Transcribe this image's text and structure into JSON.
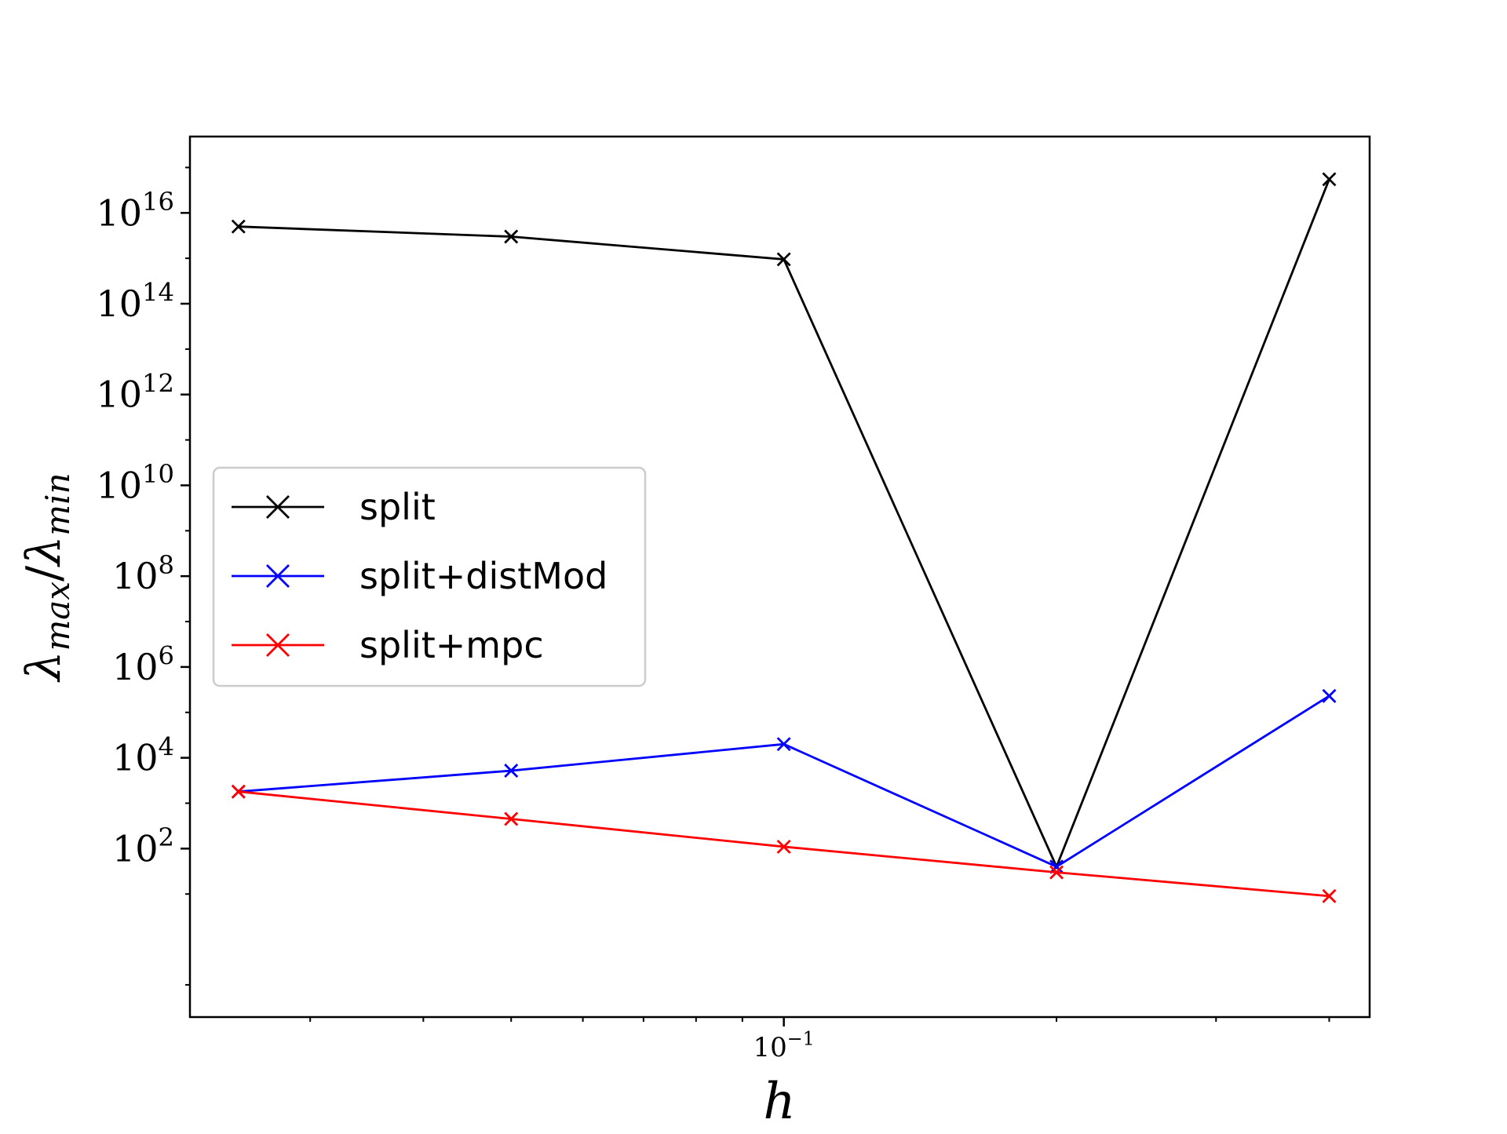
{
  "chart_data": {
    "type": "line",
    "title": "",
    "xlabel": "h",
    "ylabel": "λmax/λmin",
    "x_scale": "log",
    "y_scale": "log",
    "x": [
      0.025,
      0.05,
      0.1,
      0.2,
      0.4
    ],
    "xlim": [
      0.0221,
      0.4433
    ],
    "ylim": [
      0.0195,
      4.8e+17
    ],
    "x_ticks": [
      {
        "value": 0.1,
        "base": "10",
        "exp": "−1"
      }
    ],
    "y_ticks": [
      {
        "value": 100,
        "base": "10",
        "exp": "2"
      },
      {
        "value": 10000,
        "base": "10",
        "exp": "4"
      },
      {
        "value": 1000000,
        "base": "10",
        "exp": "6"
      },
      {
        "value": 100000000,
        "base": "10",
        "exp": "8"
      },
      {
        "value": 10000000000,
        "base": "10",
        "exp": "10"
      },
      {
        "value": 1000000000000,
        "base": "10",
        "exp": "12"
      },
      {
        "value": 100000000000000,
        "base": "10",
        "exp": "14"
      },
      {
        "value": 10000000000000000,
        "base": "10",
        "exp": "16"
      }
    ],
    "grid": false,
    "legend_position": "center-left",
    "series": [
      {
        "name": "split",
        "color": "#000000",
        "marker": "x",
        "values": [
          5000000000000000.0,
          3000000000000000.0,
          950000000000000.0,
          40,
          5.5e+16
        ]
      },
      {
        "name": "split+distMod",
        "color": "#0000ff",
        "marker": "x",
        "values": [
          1800,
          5200,
          20000,
          40,
          230000
        ]
      },
      {
        "name": "split+mpc",
        "color": "#ff0000",
        "marker": "x",
        "values": [
          1800,
          450,
          110,
          30,
          9
        ]
      }
    ]
  }
}
